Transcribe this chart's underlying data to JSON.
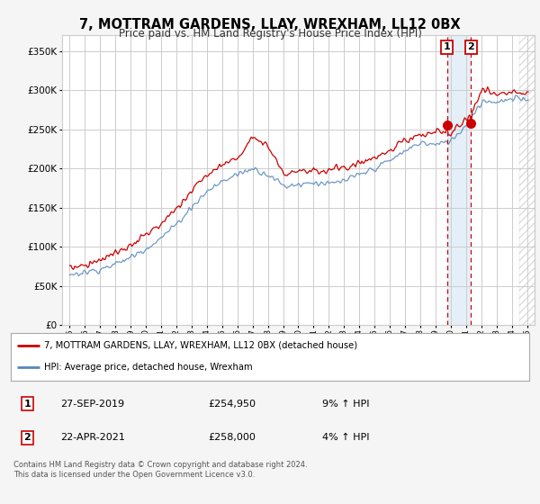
{
  "title": "7, MOTTRAM GARDENS, LLAY, WREXHAM, LL12 0BX",
  "subtitle": "Price paid vs. HM Land Registry's House Price Index (HPI)",
  "legend_line1": "7, MOTTRAM GARDENS, LLAY, WREXHAM, LL12 0BX (detached house)",
  "legend_line2": "HPI: Average price, detached house, Wrexham",
  "transaction1_date": "27-SEP-2019",
  "transaction1_price": "£254,950",
  "transaction1_hpi": "9% ↑ HPI",
  "transaction2_date": "22-APR-2021",
  "transaction2_price": "£258,000",
  "transaction2_hpi": "4% ↑ HPI",
  "footer": "Contains HM Land Registry data © Crown copyright and database right 2024.\nThis data is licensed under the Open Government Licence v3.0.",
  "ylim": [
    0,
    370000
  ],
  "yticks": [
    0,
    50000,
    100000,
    150000,
    200000,
    250000,
    300000,
    350000
  ],
  "ytick_labels": [
    "£0",
    "£50K",
    "£100K",
    "£150K",
    "£200K",
    "£250K",
    "£300K",
    "£350K"
  ],
  "red_color": "#cc0000",
  "blue_color": "#5588bb",
  "bg_color": "#f5f5f5",
  "plot_bg": "#ffffff",
  "grid_color": "#cccccc",
  "transaction1_x": 2019.75,
  "transaction1_y": 254950,
  "transaction2_x": 2021.32,
  "transaction2_y": 258000,
  "xlim_left": 1994.5,
  "xlim_right": 2025.5,
  "future_start": 2024.5
}
